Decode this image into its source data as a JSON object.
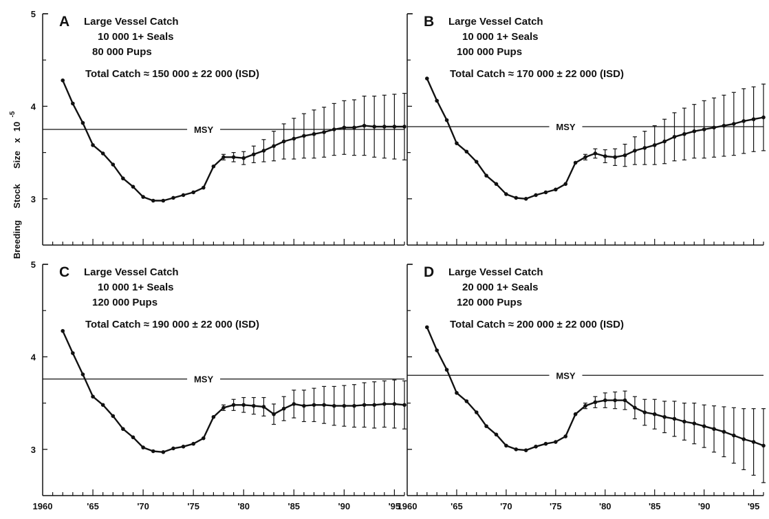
{
  "figure": {
    "ylabel_parts": [
      "Breeding",
      "Stock",
      "Size",
      "x",
      "10"
    ],
    "ylabel_exponent": "-5",
    "msy_label": "MSY"
  },
  "chart_data": [
    {
      "type": "line",
      "panel": "A",
      "annotations": [
        "Large Vessel Catch",
        "10 000  1+ Seals",
        "80 000  Pups",
        "Total Catch  ≈  150 000  ± 22 000 (ISD)"
      ],
      "y_ticks": [
        "5",
        "4",
        "3"
      ],
      "ylim": [
        2.5,
        5
      ],
      "xlim": [
        1960,
        1996
      ],
      "x_tick_values": [
        1960,
        1965,
        1970,
        1975,
        1980,
        1985,
        1990,
        1995
      ],
      "x_tick_labels": [],
      "msy": 3.75,
      "x": [
        1962,
        1963,
        1964,
        1965,
        1966,
        1967,
        1968,
        1969,
        1970,
        1971,
        1972,
        1973,
        1974,
        1975,
        1976,
        1977,
        1978,
        1979,
        1980,
        1981,
        1982,
        1983,
        1984,
        1985,
        1986,
        1987,
        1988,
        1989,
        1990,
        1991,
        1992,
        1993,
        1994,
        1995,
        1996
      ],
      "y": [
        4.28,
        4.03,
        3.82,
        3.58,
        3.49,
        3.37,
        3.22,
        3.13,
        3.02,
        2.98,
        2.98,
        3.01,
        3.04,
        3.07,
        3.12,
        3.35,
        3.45,
        3.45,
        3.44,
        3.48,
        3.52,
        3.57,
        3.62,
        3.65,
        3.68,
        3.7,
        3.72,
        3.75,
        3.77,
        3.77,
        3.79,
        3.78,
        3.78,
        3.78,
        3.78
      ],
      "error": [
        0,
        0,
        0,
        0,
        0,
        0,
        0,
        0,
        0,
        0,
        0,
        0,
        0,
        0,
        0,
        0,
        0.03,
        0.05,
        0.07,
        0.09,
        0.12,
        0.16,
        0.19,
        0.22,
        0.24,
        0.26,
        0.27,
        0.28,
        0.29,
        0.3,
        0.32,
        0.33,
        0.34,
        0.35,
        0.36
      ]
    },
    {
      "type": "line",
      "panel": "B",
      "annotations": [
        "Large Vessel Catch",
        "10 000  1+ Seals",
        "100 000  Pups",
        "Total Catch  ≈  170 000  ± 22 000 (ISD)"
      ],
      "y_ticks": [
        "",
        "",
        ""
      ],
      "ylim": [
        2.5,
        5
      ],
      "xlim": [
        1960,
        1996
      ],
      "x_tick_values": [
        1960,
        1965,
        1970,
        1975,
        1980,
        1985,
        1990,
        1995
      ],
      "x_tick_labels": [],
      "msy": 3.78,
      "x": [
        1962,
        1963,
        1964,
        1965,
        1966,
        1967,
        1968,
        1969,
        1970,
        1971,
        1972,
        1973,
        1974,
        1975,
        1976,
        1977,
        1978,
        1979,
        1980,
        1981,
        1982,
        1983,
        1984,
        1985,
        1986,
        1987,
        1988,
        1989,
        1990,
        1991,
        1992,
        1993,
        1994,
        1995,
        1996
      ],
      "y": [
        4.3,
        4.06,
        3.85,
        3.6,
        3.51,
        3.4,
        3.25,
        3.16,
        3.05,
        3.01,
        3.0,
        3.04,
        3.07,
        3.1,
        3.16,
        3.39,
        3.45,
        3.49,
        3.46,
        3.45,
        3.47,
        3.52,
        3.55,
        3.58,
        3.62,
        3.67,
        3.7,
        3.73,
        3.75,
        3.77,
        3.79,
        3.81,
        3.84,
        3.86,
        3.88
      ],
      "error": [
        0,
        0,
        0,
        0,
        0,
        0,
        0,
        0,
        0,
        0,
        0,
        0,
        0,
        0,
        0,
        0,
        0.03,
        0.05,
        0.07,
        0.09,
        0.12,
        0.15,
        0.18,
        0.21,
        0.24,
        0.26,
        0.28,
        0.29,
        0.31,
        0.32,
        0.33,
        0.34,
        0.35,
        0.35,
        0.36
      ]
    },
    {
      "type": "line",
      "panel": "C",
      "annotations": [
        "Large Vessel Catch",
        "10 000  1+ Seals",
        "120 000  Pups",
        "Total Catch  ≈  190 000  ± 22 000 (ISD)"
      ],
      "y_ticks": [
        "5",
        "4",
        "3"
      ],
      "ylim": [
        2.5,
        5
      ],
      "xlim": [
        1960,
        1996
      ],
      "x_tick_values": [
        1960,
        1965,
        1970,
        1975,
        1980,
        1985,
        1990,
        1995
      ],
      "x_tick_labels": [
        "1960",
        "'65",
        "'70",
        "'75",
        "'80",
        "'85",
        "'90",
        "'95"
      ],
      "msy": 3.76,
      "x": [
        1962,
        1963,
        1964,
        1965,
        1966,
        1967,
        1968,
        1969,
        1970,
        1971,
        1972,
        1973,
        1974,
        1975,
        1976,
        1977,
        1978,
        1979,
        1980,
        1981,
        1982,
        1983,
        1984,
        1985,
        1986,
        1987,
        1988,
        1989,
        1990,
        1991,
        1992,
        1993,
        1994,
        1995,
        1996
      ],
      "y": [
        4.28,
        4.04,
        3.81,
        3.57,
        3.48,
        3.36,
        3.22,
        3.13,
        3.02,
        2.98,
        2.97,
        3.01,
        3.03,
        3.06,
        3.12,
        3.35,
        3.45,
        3.48,
        3.48,
        3.47,
        3.46,
        3.38,
        3.44,
        3.49,
        3.47,
        3.48,
        3.48,
        3.47,
        3.47,
        3.47,
        3.48,
        3.48,
        3.49,
        3.49,
        3.48
      ],
      "error": [
        0,
        0,
        0,
        0,
        0,
        0,
        0,
        0,
        0,
        0,
        0,
        0,
        0,
        0,
        0,
        0,
        0.03,
        0.06,
        0.08,
        0.09,
        0.1,
        0.11,
        0.13,
        0.15,
        0.17,
        0.18,
        0.2,
        0.21,
        0.22,
        0.23,
        0.24,
        0.25,
        0.25,
        0.26,
        0.26
      ]
    },
    {
      "type": "line",
      "panel": "D",
      "annotations": [
        "Large Vessel Catch",
        "20 000  1+ Seals",
        "120 000  Pups",
        "Total Catch  ≈  200 000  ± 22 000 (ISD)"
      ],
      "y_ticks": [
        "",
        "",
        ""
      ],
      "ylim": [
        2.5,
        5
      ],
      "xlim": [
        1960,
        1996
      ],
      "x_tick_values": [
        1960,
        1965,
        1970,
        1975,
        1980,
        1985,
        1990,
        1995
      ],
      "x_tick_labels": [
        "1960",
        "'65",
        "'70",
        "'75",
        "'80",
        "'85",
        "'90",
        "'95"
      ],
      "msy": 3.8,
      "x": [
        1962,
        1963,
        1964,
        1965,
        1966,
        1967,
        1968,
        1969,
        1970,
        1971,
        1972,
        1973,
        1974,
        1975,
        1976,
        1977,
        1978,
        1979,
        1980,
        1981,
        1982,
        1983,
        1984,
        1985,
        1986,
        1987,
        1988,
        1989,
        1990,
        1991,
        1992,
        1993,
        1994,
        1995,
        1996
      ],
      "y": [
        4.32,
        4.07,
        3.86,
        3.61,
        3.52,
        3.4,
        3.25,
        3.16,
        3.04,
        3.0,
        2.99,
        3.03,
        3.06,
        3.08,
        3.14,
        3.38,
        3.47,
        3.51,
        3.53,
        3.53,
        3.53,
        3.45,
        3.4,
        3.38,
        3.35,
        3.33,
        3.3,
        3.28,
        3.25,
        3.22,
        3.19,
        3.15,
        3.11,
        3.08,
        3.04
      ],
      "error": [
        0,
        0,
        0,
        0,
        0,
        0,
        0,
        0,
        0,
        0,
        0,
        0,
        0,
        0,
        0,
        0,
        0.03,
        0.06,
        0.08,
        0.09,
        0.1,
        0.12,
        0.14,
        0.16,
        0.17,
        0.19,
        0.2,
        0.22,
        0.23,
        0.25,
        0.27,
        0.3,
        0.33,
        0.36,
        0.4
      ]
    }
  ]
}
